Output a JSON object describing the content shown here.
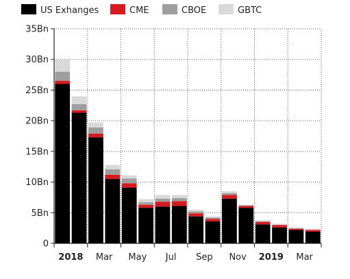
{
  "chart_data": {
    "type": "bar",
    "stacked": true,
    "title": "",
    "xlabel": "",
    "ylabel": "",
    "ylim": [
      0,
      35
    ],
    "y_unit_suffix": "Bn",
    "yticks": [
      0,
      5,
      10,
      15,
      20,
      25,
      30,
      35
    ],
    "grid": "dotted",
    "legend_position": "top",
    "categories": [
      "2018-01",
      "2018-02",
      "2018-03",
      "2018-04",
      "2018-05",
      "2018-06",
      "2018-07",
      "2018-08",
      "2018-09",
      "2018-10",
      "2018-11",
      "2018-12",
      "2019-01",
      "2019-02",
      "2019-03",
      "2019-04"
    ],
    "x_tick_labels": [
      {
        "index": 0,
        "label": "2018",
        "bold": true
      },
      {
        "index": 2,
        "label": "Mar",
        "bold": false
      },
      {
        "index": 4,
        "label": "May",
        "bold": false
      },
      {
        "index": 6,
        "label": "Jul",
        "bold": false
      },
      {
        "index": 8,
        "label": "Sep",
        "bold": false
      },
      {
        "index": 10,
        "label": "Nov",
        "bold": false
      },
      {
        "index": 12,
        "label": "2019",
        "bold": true
      },
      {
        "index": 14,
        "label": "Mar",
        "bold": false
      }
    ],
    "series": [
      {
        "name": "US Exhanges",
        "color": "#000000",
        "values": [
          26.0,
          21.3,
          17.3,
          10.5,
          9.1,
          5.8,
          6.0,
          6.1,
          4.4,
          3.6,
          7.3,
          5.8,
          3.1,
          2.6,
          2.2,
          1.9
        ]
      },
      {
        "name": "CME",
        "color": "#d71920",
        "values": [
          0.5,
          0.4,
          0.6,
          0.7,
          0.7,
          0.5,
          0.8,
          0.8,
          0.5,
          0.4,
          0.6,
          0.3,
          0.4,
          0.4,
          0.2,
          0.3
        ]
      },
      {
        "name": "CBOE",
        "color": "#9e9e9e",
        "values": [
          1.5,
          1.0,
          1.0,
          0.9,
          0.8,
          0.4,
          0.5,
          0.5,
          0.3,
          0.2,
          0.3,
          0.1,
          0.1,
          0.0,
          0.0,
          0.0
        ]
      },
      {
        "name": "GBTC",
        "color": "#d9d9d9",
        "values": [
          2.0,
          1.3,
          0.8,
          0.7,
          0.5,
          0.5,
          0.6,
          0.5,
          0.3,
          0.2,
          0.3,
          0.1,
          0.2,
          0.2,
          0.2,
          0.2
        ]
      }
    ]
  }
}
